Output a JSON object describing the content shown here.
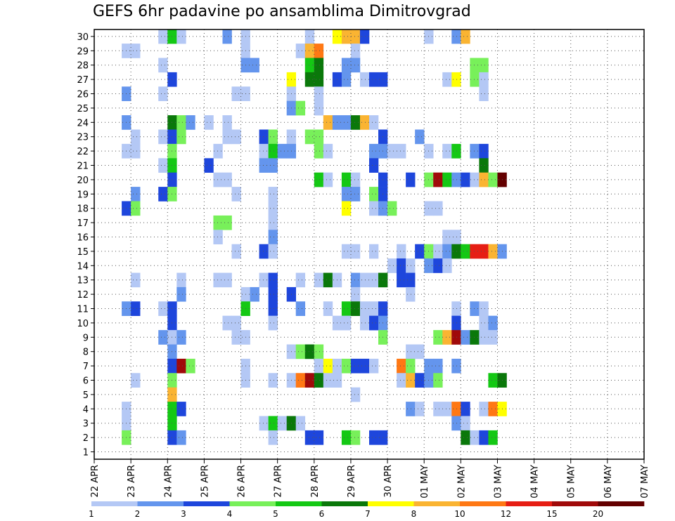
{
  "chart_data": {
    "type": "heatmap",
    "title": "GEFS 6hr padavine po ansamblima Dimitrovgrad",
    "x_tick_labels": [
      "22 APR",
      "23 APR",
      "24 APR",
      "25 APR",
      "26 APR",
      "27 APR",
      "28 APR",
      "29 APR",
      "30 APR",
      "01 MAY",
      "02 MAY",
      "03 MAY",
      "04 MAY",
      "05 MAY",
      "06 MAY",
      "07 MAY"
    ],
    "y_tick_labels": [
      "1",
      "2",
      "3",
      "4",
      "5",
      "6",
      "7",
      "8",
      "9",
      "10",
      "11",
      "12",
      "13",
      "14",
      "15",
      "16",
      "17",
      "18",
      "19",
      "20",
      "21",
      "22",
      "23",
      "24",
      "25",
      "26",
      "27",
      "28",
      "29",
      "30"
    ],
    "ylim": [
      1,
      30
    ],
    "steps_per_day": 4,
    "num_steps": 60,
    "grid": "dotted",
    "scale": {
      "labels": [
        "1",
        "2",
        "3",
        "4",
        "5",
        "6",
        "7",
        "8",
        "10",
        "12",
        "15",
        "20"
      ],
      "colors": [
        "#b4c8f5",
        "#6495ed",
        "#1e46dc",
        "#78f05a",
        "#14c814",
        "#0a780a",
        "#ffff00",
        "#fab432",
        "#ff7814",
        "#e61e14",
        "#a00a0a",
        "#640000"
      ]
    },
    "cells": [
      [
        30,
        7,
        1
      ],
      [
        30,
        8,
        5
      ],
      [
        30,
        9,
        1
      ],
      [
        30,
        14,
        2
      ],
      [
        30,
        16,
        1
      ],
      [
        30,
        23,
        1
      ],
      [
        30,
        26,
        7
      ],
      [
        30,
        27,
        8
      ],
      [
        30,
        28,
        8
      ],
      [
        30,
        29,
        3
      ],
      [
        30,
        36,
        1
      ],
      [
        30,
        39,
        2
      ],
      [
        30,
        40,
        8
      ],
      [
        29,
        3,
        1
      ],
      [
        29,
        4,
        1
      ],
      [
        29,
        16,
        1
      ],
      [
        29,
        22,
        1
      ],
      [
        29,
        23,
        8
      ],
      [
        29,
        24,
        9
      ],
      [
        29,
        28,
        1
      ],
      [
        28,
        7,
        1
      ],
      [
        28,
        16,
        2
      ],
      [
        28,
        17,
        2
      ],
      [
        28,
        23,
        5
      ],
      [
        28,
        24,
        6
      ],
      [
        28,
        27,
        2
      ],
      [
        28,
        28,
        2
      ],
      [
        28,
        41,
        4
      ],
      [
        28,
        42,
        4
      ],
      [
        27,
        8,
        3
      ],
      [
        27,
        21,
        7
      ],
      [
        27,
        23,
        6
      ],
      [
        27,
        24,
        6
      ],
      [
        27,
        26,
        3
      ],
      [
        27,
        27,
        2
      ],
      [
        27,
        29,
        1
      ],
      [
        27,
        30,
        3
      ],
      [
        27,
        31,
        3
      ],
      [
        27,
        38,
        1
      ],
      [
        27,
        39,
        7
      ],
      [
        27,
        41,
        4
      ],
      [
        27,
        42,
        1
      ],
      [
        26,
        3,
        2
      ],
      [
        26,
        7,
        1
      ],
      [
        26,
        15,
        1
      ],
      [
        26,
        16,
        1
      ],
      [
        26,
        21,
        1
      ],
      [
        26,
        24,
        1
      ],
      [
        26,
        42,
        1
      ],
      [
        25,
        21,
        2
      ],
      [
        25,
        22,
        4
      ],
      [
        25,
        24,
        1
      ],
      [
        24,
        3,
        2
      ],
      [
        24,
        8,
        6
      ],
      [
        24,
        9,
        4
      ],
      [
        24,
        10,
        2
      ],
      [
        24,
        12,
        1
      ],
      [
        24,
        14,
        1
      ],
      [
        24,
        25,
        8
      ],
      [
        24,
        26,
        2
      ],
      [
        24,
        27,
        2
      ],
      [
        24,
        28,
        6
      ],
      [
        24,
        29,
        8
      ],
      [
        24,
        30,
        1
      ],
      [
        23,
        4,
        1
      ],
      [
        23,
        7,
        1
      ],
      [
        23,
        8,
        3
      ],
      [
        23,
        9,
        4
      ],
      [
        23,
        14,
        1
      ],
      [
        23,
        15,
        1
      ],
      [
        23,
        18,
        3
      ],
      [
        23,
        19,
        4
      ],
      [
        23,
        21,
        1
      ],
      [
        23,
        23,
        4
      ],
      [
        23,
        24,
        4
      ],
      [
        23,
        31,
        3
      ],
      [
        23,
        35,
        2
      ],
      [
        22,
        3,
        1
      ],
      [
        22,
        4,
        1
      ],
      [
        22,
        8,
        4
      ],
      [
        22,
        13,
        1
      ],
      [
        22,
        18,
        1
      ],
      [
        22,
        19,
        5
      ],
      [
        22,
        20,
        2
      ],
      [
        22,
        21,
        2
      ],
      [
        22,
        24,
        4
      ],
      [
        22,
        25,
        1
      ],
      [
        22,
        30,
        2
      ],
      [
        22,
        31,
        2
      ],
      [
        22,
        32,
        1
      ],
      [
        22,
        33,
        1
      ],
      [
        22,
        36,
        1
      ],
      [
        22,
        38,
        1
      ],
      [
        22,
        39,
        5
      ],
      [
        22,
        41,
        2
      ],
      [
        22,
        42,
        3
      ],
      [
        21,
        7,
        1
      ],
      [
        21,
        8,
        5
      ],
      [
        21,
        12,
        3
      ],
      [
        21,
        18,
        2
      ],
      [
        21,
        19,
        2
      ],
      [
        21,
        30,
        3
      ],
      [
        21,
        42,
        6
      ],
      [
        20,
        8,
        3
      ],
      [
        20,
        13,
        1
      ],
      [
        20,
        14,
        1
      ],
      [
        20,
        24,
        5
      ],
      [
        20,
        25,
        1
      ],
      [
        20,
        27,
        5
      ],
      [
        20,
        28,
        1
      ],
      [
        20,
        31,
        3
      ],
      [
        20,
        34,
        3
      ],
      [
        20,
        36,
        4
      ],
      [
        20,
        37,
        11
      ],
      [
        20,
        38,
        5
      ],
      [
        20,
        39,
        2
      ],
      [
        20,
        40,
        3
      ],
      [
        20,
        41,
        1
      ],
      [
        20,
        42,
        8
      ],
      [
        20,
        43,
        4
      ],
      [
        20,
        44,
        12
      ],
      [
        19,
        4,
        2
      ],
      [
        19,
        7,
        3
      ],
      [
        19,
        8,
        4
      ],
      [
        19,
        15,
        1
      ],
      [
        19,
        19,
        1
      ],
      [
        19,
        27,
        2
      ],
      [
        19,
        28,
        2
      ],
      [
        19,
        30,
        4
      ],
      [
        19,
        31,
        3
      ],
      [
        18,
        3,
        3
      ],
      [
        18,
        4,
        4
      ],
      [
        18,
        19,
        1
      ],
      [
        18,
        27,
        7
      ],
      [
        18,
        30,
        1
      ],
      [
        18,
        31,
        2
      ],
      [
        18,
        32,
        4
      ],
      [
        18,
        36,
        1
      ],
      [
        18,
        37,
        1
      ],
      [
        17,
        13,
        4
      ],
      [
        17,
        14,
        4
      ],
      [
        17,
        19,
        1
      ],
      [
        16,
        13,
        1
      ],
      [
        16,
        19,
        2
      ],
      [
        16,
        38,
        1
      ],
      [
        16,
        39,
        1
      ],
      [
        15,
        15,
        1
      ],
      [
        15,
        18,
        3
      ],
      [
        15,
        19,
        1
      ],
      [
        15,
        27,
        1
      ],
      [
        15,
        28,
        1
      ],
      [
        15,
        30,
        1
      ],
      [
        15,
        33,
        1
      ],
      [
        15,
        35,
        3
      ],
      [
        15,
        36,
        4
      ],
      [
        15,
        37,
        1
      ],
      [
        15,
        38,
        2
      ],
      [
        15,
        39,
        6
      ],
      [
        15,
        40,
        5
      ],
      [
        15,
        41,
        10
      ],
      [
        15,
        42,
        10
      ],
      [
        15,
        43,
        8
      ],
      [
        15,
        44,
        2
      ],
      [
        14,
        32,
        1
      ],
      [
        14,
        33,
        3
      ],
      [
        14,
        34,
        1
      ],
      [
        14,
        36,
        2
      ],
      [
        14,
        37,
        3
      ],
      [
        14,
        38,
        1
      ],
      [
        13,
        4,
        1
      ],
      [
        13,
        9,
        1
      ],
      [
        13,
        13,
        1
      ],
      [
        13,
        14,
        1
      ],
      [
        13,
        18,
        1
      ],
      [
        13,
        19,
        3
      ],
      [
        13,
        22,
        1
      ],
      [
        13,
        24,
        1
      ],
      [
        13,
        25,
        6
      ],
      [
        13,
        26,
        1
      ],
      [
        13,
        28,
        2
      ],
      [
        13,
        29,
        1
      ],
      [
        13,
        30,
        1
      ],
      [
        13,
        31,
        6
      ],
      [
        13,
        33,
        3
      ],
      [
        13,
        34,
        3
      ],
      [
        12,
        9,
        2
      ],
      [
        12,
        16,
        1
      ],
      [
        12,
        17,
        2
      ],
      [
        12,
        19,
        3
      ],
      [
        12,
        21,
        3
      ],
      [
        12,
        28,
        1
      ],
      [
        12,
        34,
        1
      ],
      [
        11,
        3,
        2
      ],
      [
        11,
        4,
        3
      ],
      [
        11,
        7,
        1
      ],
      [
        11,
        8,
        3
      ],
      [
        11,
        16,
        5
      ],
      [
        11,
        19,
        3
      ],
      [
        11,
        22,
        2
      ],
      [
        11,
        25,
        1
      ],
      [
        11,
        27,
        5
      ],
      [
        11,
        28,
        6
      ],
      [
        11,
        29,
        1
      ],
      [
        11,
        30,
        1
      ],
      [
        11,
        31,
        3
      ],
      [
        11,
        39,
        1
      ],
      [
        11,
        41,
        2
      ],
      [
        11,
        42,
        1
      ],
      [
        10,
        8,
        3
      ],
      [
        10,
        14,
        1
      ],
      [
        10,
        15,
        1
      ],
      [
        10,
        19,
        1
      ],
      [
        10,
        26,
        1
      ],
      [
        10,
        27,
        1
      ],
      [
        10,
        29,
        1
      ],
      [
        10,
        30,
        3
      ],
      [
        10,
        31,
        2
      ],
      [
        10,
        39,
        3
      ],
      [
        10,
        42,
        1
      ],
      [
        10,
        43,
        2
      ],
      [
        9,
        7,
        2
      ],
      [
        9,
        8,
        1
      ],
      [
        9,
        9,
        2
      ],
      [
        9,
        15,
        1
      ],
      [
        9,
        16,
        1
      ],
      [
        9,
        31,
        4
      ],
      [
        9,
        37,
        4
      ],
      [
        9,
        38,
        8
      ],
      [
        9,
        39,
        11
      ],
      [
        9,
        40,
        2
      ],
      [
        9,
        41,
        6
      ],
      [
        9,
        42,
        1
      ],
      [
        9,
        43,
        1
      ],
      [
        8,
        8,
        2
      ],
      [
        8,
        21,
        1
      ],
      [
        8,
        22,
        4
      ],
      [
        8,
        23,
        6
      ],
      [
        8,
        24,
        4
      ],
      [
        8,
        34,
        1
      ],
      [
        8,
        35,
        1
      ],
      [
        7,
        8,
        3
      ],
      [
        7,
        9,
        11
      ],
      [
        7,
        10,
        4
      ],
      [
        7,
        16,
        1
      ],
      [
        7,
        24,
        1
      ],
      [
        7,
        25,
        7
      ],
      [
        7,
        26,
        1
      ],
      [
        7,
        27,
        4
      ],
      [
        7,
        28,
        3
      ],
      [
        7,
        29,
        3
      ],
      [
        7,
        30,
        1
      ],
      [
        7,
        33,
        9
      ],
      [
        7,
        34,
        4
      ],
      [
        7,
        36,
        2
      ],
      [
        7,
        37,
        2
      ],
      [
        7,
        39,
        2
      ],
      [
        6,
        4,
        1
      ],
      [
        6,
        8,
        4
      ],
      [
        6,
        16,
        1
      ],
      [
        6,
        19,
        1
      ],
      [
        6,
        21,
        1
      ],
      [
        6,
        22,
        9
      ],
      [
        6,
        23,
        11
      ],
      [
        6,
        24,
        6
      ],
      [
        6,
        25,
        1
      ],
      [
        6,
        26,
        1
      ],
      [
        6,
        33,
        1
      ],
      [
        6,
        34,
        8
      ],
      [
        6,
        35,
        3
      ],
      [
        6,
        36,
        2
      ],
      [
        6,
        37,
        4
      ],
      [
        6,
        43,
        5
      ],
      [
        6,
        44,
        6
      ],
      [
        5,
        8,
        8
      ],
      [
        5,
        28,
        1
      ],
      [
        4,
        3,
        1
      ],
      [
        4,
        8,
        5
      ],
      [
        4,
        9,
        3
      ],
      [
        4,
        34,
        2
      ],
      [
        4,
        35,
        1
      ],
      [
        4,
        37,
        1
      ],
      [
        4,
        38,
        1
      ],
      [
        4,
        39,
        9
      ],
      [
        4,
        40,
        3
      ],
      [
        4,
        42,
        1
      ],
      [
        4,
        43,
        9
      ],
      [
        4,
        44,
        7
      ],
      [
        3,
        3,
        1
      ],
      [
        3,
        8,
        5
      ],
      [
        3,
        18,
        1
      ],
      [
        3,
        19,
        5
      ],
      [
        3,
        20,
        1
      ],
      [
        3,
        21,
        6
      ],
      [
        3,
        22,
        1
      ],
      [
        3,
        39,
        2
      ],
      [
        3,
        40,
        1
      ],
      [
        2,
        3,
        4
      ],
      [
        2,
        8,
        3
      ],
      [
        2,
        9,
        2
      ],
      [
        2,
        19,
        1
      ],
      [
        2,
        23,
        3
      ],
      [
        2,
        24,
        3
      ],
      [
        2,
        27,
        5
      ],
      [
        2,
        28,
        4
      ],
      [
        2,
        30,
        3
      ],
      [
        2,
        31,
        3
      ],
      [
        2,
        40,
        6
      ],
      [
        2,
        41,
        1
      ],
      [
        2,
        42,
        3
      ],
      [
        2,
        43,
        5
      ]
    ]
  }
}
